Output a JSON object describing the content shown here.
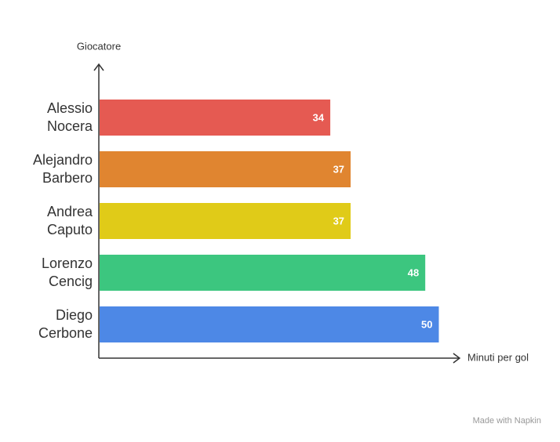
{
  "chart_data": {
    "type": "bar",
    "orientation": "horizontal",
    "x_label": "Minuti per gol",
    "y_label": "Giocatore",
    "categories": [
      "Alessio Nocera",
      "Alejandro Barbero",
      "Andrea Caputo",
      "Lorenzo Cencig",
      "Diego Cerbone"
    ],
    "values": [
      34,
      37,
      37,
      48,
      50
    ],
    "colors": [
      "#e55a52",
      "#e08530",
      "#e0cb18",
      "#3cc67f",
      "#4d88e6"
    ]
  },
  "watermark": "Made with Napkin"
}
